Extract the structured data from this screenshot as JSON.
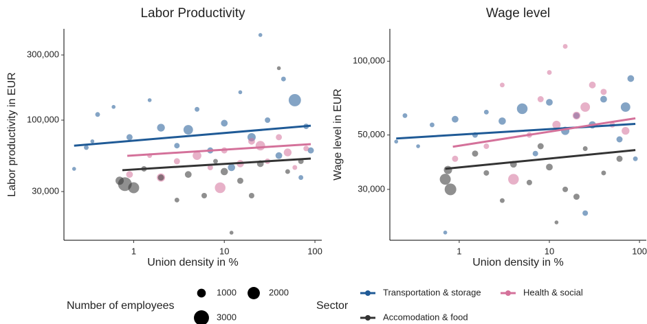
{
  "chart_data": [
    {
      "type": "scatter",
      "title": "Labor Productivity",
      "x_label": "Union density in %",
      "y_label": "Labor productivity in EUR",
      "xscale": "log",
      "yscale": "log",
      "xlim": [
        0.17,
        119
      ],
      "ylim": [
        13200,
        466000
      ],
      "xticks": [
        1,
        10,
        100
      ],
      "yticks": [
        {
          "value": 30000,
          "label": "30,000"
        },
        {
          "value": 100000,
          "label": "100,000"
        },
        {
          "value": 300000,
          "label": "300,000"
        }
      ],
      "size_legend": {
        "title": "Number of employees",
        "values": [
          1000,
          2000,
          3000
        ]
      },
      "legend_title": "Sector",
      "series": [
        {
          "name": "Transportation & storage",
          "color": "#1f5a96",
          "x": [
            0.22,
            0.3,
            0.35,
            0.4,
            0.6,
            0.9,
            1.5,
            2,
            3,
            4,
            5,
            7,
            10,
            15,
            20,
            25,
            30,
            40,
            45,
            60,
            70,
            80,
            90,
            12
          ],
          "values": [
            44000,
            63000,
            70000,
            110000,
            125000,
            75000,
            140000,
            88000,
            65000,
            85000,
            120000,
            60000,
            95000,
            160000,
            75000,
            420000,
            100000,
            55000,
            200000,
            140000,
            38000,
            90000,
            60000,
            45000
          ],
          "sizes": [
            200,
            300,
            200,
            300,
            200,
            500,
            200,
            800,
            400,
            1200,
            300,
            500,
            600,
            200,
            900,
            200,
            400,
            600,
            300,
            2000,
            300,
            400,
            500,
            700
          ],
          "trend": {
            "x": [
              0.22,
              90
            ],
            "values": [
              65000,
              91000
            ]
          }
        },
        {
          "name": "Health & social",
          "color": "#d4719a",
          "x": [
            0.9,
            1.5,
            2,
            3,
            5,
            7,
            9,
            10,
            15,
            20,
            25,
            30,
            40,
            50,
            60,
            80
          ],
          "values": [
            40000,
            55000,
            38000,
            50000,
            55000,
            45000,
            32000,
            60000,
            48000,
            70000,
            65000,
            50000,
            75000,
            58000,
            45000,
            62000
          ],
          "sizes": [
            600,
            300,
            900,
            500,
            1000,
            400,
            1500,
            500,
            700,
            600,
            1200,
            400,
            500,
            800,
            300,
            400
          ],
          "trend": {
            "x": [
              0.85,
              90
            ],
            "values": [
              54800,
              66700
            ]
          }
        },
        {
          "name": "Accomodation & food",
          "color": "#333333",
          "x": [
            0.7,
            0.8,
            1,
            1.3,
            2,
            3,
            4,
            6,
            8,
            10,
            12,
            15,
            20,
            25,
            40,
            50,
            70
          ],
          "values": [
            36000,
            34000,
            32000,
            44000,
            38000,
            26000,
            40000,
            28000,
            50000,
            42000,
            15000,
            36000,
            28000,
            48000,
            240000,
            42000,
            50000
          ],
          "sizes": [
            900,
            2500,
            1600,
            400,
            500,
            300,
            600,
            400,
            300,
            700,
            200,
            500,
            400,
            600,
            200,
            300,
            400
          ],
          "trend": {
            "x": [
              0.75,
              90
            ],
            "values": [
              43000,
              52300
            ]
          }
        }
      ]
    },
    {
      "type": "scatter",
      "title": "Wage level",
      "x_label": "Union density in %",
      "y_label": "Wage level in EUR",
      "xscale": "log",
      "yscale": "log",
      "xlim": [
        0.17,
        119
      ],
      "ylim": [
        18600,
        135600
      ],
      "xticks": [
        1,
        10,
        100
      ],
      "yticks": [
        {
          "value": 30000,
          "label": "30,000"
        },
        {
          "value": 50000,
          "label": "50,000"
        },
        {
          "value": 100000,
          "label": "100,000"
        }
      ],
      "series": [
        {
          "name": "Transportation & storage",
          "color": "#1f5a96",
          "x": [
            0.2,
            0.25,
            0.35,
            0.5,
            0.7,
            0.9,
            1.5,
            2,
            3,
            5,
            7,
            10,
            15,
            20,
            25,
            30,
            40,
            60,
            70,
            80,
            90
          ],
          "values": [
            47000,
            60000,
            45000,
            55000,
            20000,
            58000,
            50000,
            62000,
            57000,
            64000,
            42000,
            68000,
            52000,
            60000,
            24000,
            55000,
            70000,
            48000,
            65000,
            85000,
            40000
          ],
          "sizes": [
            200,
            300,
            200,
            300,
            200,
            600,
            400,
            300,
            700,
            1500,
            400,
            600,
            900,
            500,
            400,
            700,
            600,
            500,
            1200,
            600,
            300
          ],
          "trend": {
            "x": [
              0.2,
              90
            ],
            "values": [
              48400,
              55500
            ]
          }
        },
        {
          "name": "Health & social",
          "color": "#d4719a",
          "x": [
            0.9,
            2,
            3,
            4,
            6,
            8,
            10,
            12,
            15,
            20,
            25,
            30,
            40,
            50,
            70
          ],
          "values": [
            40000,
            45000,
            80000,
            33000,
            50000,
            70000,
            90000,
            55000,
            115000,
            60000,
            65000,
            80000,
            75000,
            55000,
            52000
          ],
          "sizes": [
            500,
            400,
            300,
            1500,
            400,
            500,
            300,
            900,
            300,
            800,
            1200,
            600,
            500,
            400,
            800
          ],
          "trend": {
            "x": [
              0.85,
              90
            ],
            "values": [
              44800,
              58500
            ]
          }
        },
        {
          "name": "Accomodation & food",
          "color": "#333333",
          "x": [
            0.7,
            0.75,
            0.8,
            1.5,
            2,
            3,
            4,
            6,
            8,
            10,
            12,
            15,
            20,
            25,
            40,
            60
          ],
          "values": [
            33000,
            36000,
            30000,
            42000,
            35000,
            27000,
            38000,
            32000,
            45000,
            37000,
            22000,
            30000,
            28000,
            44000,
            35000,
            40000
          ],
          "sizes": [
            1600,
            900,
            1800,
            500,
            400,
            300,
            600,
            400,
            500,
            600,
            200,
            400,
            500,
            300,
            300,
            500
          ],
          "trend": {
            "x": [
              0.7,
              90
            ],
            "values": [
              36400,
              43400
            ]
          }
        }
      ]
    }
  ]
}
